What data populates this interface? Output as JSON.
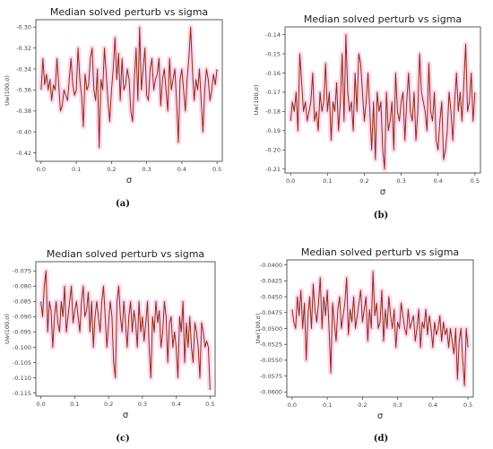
{
  "chart_data": [
    {
      "type": "line",
      "panel_label": "(a)",
      "title": "Median solved perturb vs sigma",
      "xlabel": "σ",
      "ylabel": "Uw(100,σ)",
      "xlim": [
        -0.015,
        0.515
      ],
      "ylim": [
        -0.428,
        -0.293
      ],
      "xticks": [
        0.0,
        0.1,
        0.2,
        0.3,
        0.4,
        0.5
      ],
      "xtick_labels": [
        "0.0",
        "0.1",
        "0.2",
        "0.3",
        "0.4",
        "0.5"
      ],
      "yticks": [
        -0.3,
        -0.32,
        -0.34,
        -0.36,
        -0.38,
        -0.4,
        -0.42
      ],
      "ytick_labels": [
        "-0.30",
        "-0.32",
        "-0.34",
        "-0.36",
        "-0.38",
        "-0.40",
        "-0.42"
      ],
      "grid": false,
      "line_color": "#8b2b12",
      "band_color": "#ff8fd2",
      "x": [
        0.0,
        0.005,
        0.01,
        0.015,
        0.02,
        0.025,
        0.03,
        0.035,
        0.04,
        0.045,
        0.05,
        0.055,
        0.06,
        0.065,
        0.07,
        0.075,
        0.08,
        0.085,
        0.09,
        0.095,
        0.1,
        0.105,
        0.11,
        0.115,
        0.12,
        0.125,
        0.13,
        0.135,
        0.14,
        0.145,
        0.15,
        0.155,
        0.16,
        0.165,
        0.17,
        0.175,
        0.18,
        0.185,
        0.19,
        0.195,
        0.2,
        0.205,
        0.21,
        0.215,
        0.22,
        0.225,
        0.23,
        0.235,
        0.24,
        0.245,
        0.25,
        0.255,
        0.26,
        0.265,
        0.27,
        0.275,
        0.28,
        0.285,
        0.29,
        0.295,
        0.3,
        0.305,
        0.31,
        0.315,
        0.32,
        0.325,
        0.33,
        0.335,
        0.34,
        0.345,
        0.35,
        0.355,
        0.36,
        0.365,
        0.37,
        0.375,
        0.38,
        0.385,
        0.39,
        0.395,
        0.4,
        0.405,
        0.41,
        0.415,
        0.42,
        0.425,
        0.43,
        0.435,
        0.44,
        0.445,
        0.45,
        0.455,
        0.46,
        0.465,
        0.47,
        0.475,
        0.48,
        0.485,
        0.49,
        0.495,
        0.5
      ],
      "y": [
        -0.36,
        -0.33,
        -0.355,
        -0.345,
        -0.36,
        -0.35,
        -0.37,
        -0.355,
        -0.36,
        -0.33,
        -0.355,
        -0.38,
        -0.375,
        -0.36,
        -0.365,
        -0.37,
        -0.35,
        -0.33,
        -0.355,
        -0.365,
        -0.36,
        -0.32,
        -0.35,
        -0.365,
        -0.395,
        -0.345,
        -0.36,
        -0.355,
        -0.33,
        -0.32,
        -0.36,
        -0.37,
        -0.34,
        -0.415,
        -0.35,
        -0.36,
        -0.32,
        -0.345,
        -0.37,
        -0.39,
        -0.36,
        -0.34,
        -0.31,
        -0.35,
        -0.325,
        -0.37,
        -0.33,
        -0.36,
        -0.355,
        -0.34,
        -0.35,
        -0.38,
        -0.39,
        -0.35,
        -0.32,
        -0.37,
        -0.3,
        -0.36,
        -0.34,
        -0.32,
        -0.365,
        -0.37,
        -0.34,
        -0.33,
        -0.36,
        -0.35,
        -0.345,
        -0.33,
        -0.375,
        -0.35,
        -0.34,
        -0.36,
        -0.38,
        -0.33,
        -0.36,
        -0.35,
        -0.34,
        -0.37,
        -0.41,
        -0.35,
        -0.34,
        -0.36,
        -0.38,
        -0.35,
        -0.33,
        -0.3,
        -0.34,
        -0.37,
        -0.35,
        -0.36,
        -0.34,
        -0.37,
        -0.4,
        -0.36,
        -0.34,
        -0.35,
        -0.37,
        -0.36,
        -0.345,
        -0.355,
        -0.34
      ]
    },
    {
      "type": "line",
      "panel_label": "(b)",
      "title": "Median solved perturb vs sigma",
      "xlabel": "σ",
      "ylabel": "Uw(100,σ)",
      "xlim": [
        -0.015,
        0.515
      ],
      "ylim": [
        -0.212,
        -0.136
      ],
      "xticks": [
        0.0,
        0.1,
        0.2,
        0.3,
        0.4,
        0.5
      ],
      "xtick_labels": [
        "0.0",
        "0.1",
        "0.2",
        "0.3",
        "0.4",
        "0.5"
      ],
      "yticks": [
        -0.14,
        -0.15,
        -0.16,
        -0.17,
        -0.18,
        -0.19,
        -0.2,
        -0.21
      ],
      "ytick_labels": [
        "-0.14",
        "-0.15",
        "-0.16",
        "-0.17",
        "-0.18",
        "-0.19",
        "-0.20",
        "-0.21"
      ],
      "grid": false,
      "line_color": "#8b2b12",
      "band_color": "#ff8fd2",
      "x": [
        0.0,
        0.005,
        0.01,
        0.015,
        0.02,
        0.025,
        0.03,
        0.035,
        0.04,
        0.045,
        0.05,
        0.055,
        0.06,
        0.065,
        0.07,
        0.075,
        0.08,
        0.085,
        0.09,
        0.095,
        0.1,
        0.105,
        0.11,
        0.115,
        0.12,
        0.125,
        0.13,
        0.135,
        0.14,
        0.145,
        0.15,
        0.155,
        0.16,
        0.165,
        0.17,
        0.175,
        0.18,
        0.185,
        0.19,
        0.195,
        0.2,
        0.205,
        0.21,
        0.215,
        0.22,
        0.225,
        0.23,
        0.235,
        0.24,
        0.245,
        0.25,
        0.255,
        0.26,
        0.265,
        0.27,
        0.275,
        0.28,
        0.285,
        0.29,
        0.295,
        0.3,
        0.305,
        0.31,
        0.315,
        0.32,
        0.325,
        0.33,
        0.335,
        0.34,
        0.345,
        0.35,
        0.355,
        0.36,
        0.365,
        0.37,
        0.375,
        0.38,
        0.385,
        0.39,
        0.395,
        0.4,
        0.405,
        0.41,
        0.415,
        0.42,
        0.425,
        0.43,
        0.435,
        0.44,
        0.445,
        0.45,
        0.455,
        0.46,
        0.465,
        0.47,
        0.475,
        0.48,
        0.485,
        0.49,
        0.495,
        0.5
      ],
      "y": [
        -0.185,
        -0.175,
        -0.18,
        -0.17,
        -0.19,
        -0.15,
        -0.165,
        -0.18,
        -0.175,
        -0.185,
        -0.18,
        -0.175,
        -0.16,
        -0.185,
        -0.18,
        -0.19,
        -0.17,
        -0.18,
        -0.175,
        -0.155,
        -0.18,
        -0.17,
        -0.195,
        -0.175,
        -0.18,
        -0.165,
        -0.19,
        -0.175,
        -0.15,
        -0.185,
        -0.14,
        -0.17,
        -0.18,
        -0.175,
        -0.19,
        -0.16,
        -0.18,
        -0.15,
        -0.155,
        -0.17,
        -0.185,
        -0.175,
        -0.16,
        -0.18,
        -0.2,
        -0.175,
        -0.205,
        -0.17,
        -0.18,
        -0.175,
        -0.2,
        -0.21,
        -0.17,
        -0.19,
        -0.185,
        -0.175,
        -0.2,
        -0.16,
        -0.18,
        -0.185,
        -0.175,
        -0.17,
        -0.195,
        -0.175,
        -0.16,
        -0.18,
        -0.185,
        -0.17,
        -0.195,
        -0.18,
        -0.15,
        -0.17,
        -0.175,
        -0.18,
        -0.19,
        -0.155,
        -0.18,
        -0.185,
        -0.17,
        -0.195,
        -0.2,
        -0.185,
        -0.175,
        -0.205,
        -0.2,
        -0.19,
        -0.17,
        -0.18,
        -0.195,
        -0.175,
        -0.16,
        -0.18,
        -0.17,
        -0.185,
        -0.165,
        -0.145,
        -0.18,
        -0.175,
        -0.16,
        -0.185,
        -0.17
      ]
    },
    {
      "type": "line",
      "panel_label": "(c)",
      "title": "Median solved perturb vs sigma",
      "xlabel": "σ",
      "ylabel": "Uw(100,σ)",
      "xlim": [
        -0.015,
        0.515
      ],
      "ylim": [
        -0.116,
        -0.072
      ],
      "xticks": [
        0.0,
        0.1,
        0.2,
        0.3,
        0.4,
        0.5
      ],
      "xtick_labels": [
        "0.0",
        "0.1",
        "0.2",
        "0.3",
        "0.4",
        "0.5"
      ],
      "yticks": [
        -0.075,
        -0.08,
        -0.085,
        -0.09,
        -0.095,
        -0.1,
        -0.105,
        -0.11,
        -0.115
      ],
      "ytick_labels": [
        "-0.075",
        "-0.080",
        "-0.085",
        "-0.090",
        "-0.095",
        "-0.100",
        "-0.105",
        "-0.110",
        "-0.115"
      ],
      "grid": false,
      "line_color": "#8b2b12",
      "band_color": "#ff8fd2",
      "x": [
        0.0,
        0.005,
        0.01,
        0.015,
        0.02,
        0.025,
        0.03,
        0.035,
        0.04,
        0.045,
        0.05,
        0.055,
        0.06,
        0.065,
        0.07,
        0.075,
        0.08,
        0.085,
        0.09,
        0.095,
        0.1,
        0.105,
        0.11,
        0.115,
        0.12,
        0.125,
        0.13,
        0.135,
        0.14,
        0.145,
        0.15,
        0.155,
        0.16,
        0.165,
        0.17,
        0.175,
        0.18,
        0.185,
        0.19,
        0.195,
        0.2,
        0.205,
        0.21,
        0.215,
        0.22,
        0.225,
        0.23,
        0.235,
        0.24,
        0.245,
        0.25,
        0.255,
        0.26,
        0.265,
        0.27,
        0.275,
        0.28,
        0.285,
        0.29,
        0.295,
        0.3,
        0.305,
        0.31,
        0.315,
        0.32,
        0.325,
        0.33,
        0.335,
        0.34,
        0.345,
        0.35,
        0.355,
        0.36,
        0.365,
        0.37,
        0.375,
        0.38,
        0.385,
        0.39,
        0.395,
        0.4,
        0.405,
        0.41,
        0.415,
        0.42,
        0.425,
        0.43,
        0.435,
        0.44,
        0.445,
        0.45,
        0.455,
        0.46,
        0.465,
        0.47,
        0.475,
        0.48,
        0.485,
        0.49,
        0.495,
        0.5
      ],
      "y": [
        -0.085,
        -0.09,
        -0.08,
        -0.075,
        -0.095,
        -0.085,
        -0.088,
        -0.1,
        -0.09,
        -0.085,
        -0.092,
        -0.095,
        -0.085,
        -0.09,
        -0.08,
        -0.095,
        -0.09,
        -0.085,
        -0.08,
        -0.092,
        -0.088,
        -0.085,
        -0.09,
        -0.095,
        -0.085,
        -0.08,
        -0.09,
        -0.088,
        -0.082,
        -0.095,
        -0.085,
        -0.1,
        -0.09,
        -0.085,
        -0.09,
        -0.095,
        -0.085,
        -0.08,
        -0.09,
        -0.1,
        -0.092,
        -0.085,
        -0.09,
        -0.105,
        -0.11,
        -0.085,
        -0.08,
        -0.09,
        -0.095,
        -0.085,
        -0.092,
        -0.1,
        -0.09,
        -0.085,
        -0.095,
        -0.088,
        -0.092,
        -0.1,
        -0.085,
        -0.095,
        -0.09,
        -0.098,
        -0.092,
        -0.085,
        -0.1,
        -0.11,
        -0.09,
        -0.095,
        -0.085,
        -0.092,
        -0.088,
        -0.1,
        -0.095,
        -0.085,
        -0.09,
        -0.105,
        -0.092,
        -0.09,
        -0.1,
        -0.095,
        -0.1,
        -0.11,
        -0.09,
        -0.095,
        -0.085,
        -0.105,
        -0.092,
        -0.1,
        -0.09,
        -0.1,
        -0.105,
        -0.092,
        -0.095,
        -0.1,
        -0.11,
        -0.092,
        -0.095,
        -0.1,
        -0.098,
        -0.1,
        -0.114
      ]
    },
    {
      "type": "line",
      "panel_label": "(d)",
      "title": "Median solved perturb vs sigma",
      "xlabel": "σ",
      "ylabel": "Uw(100,σ)",
      "xlim": [
        -0.015,
        0.515
      ],
      "ylim": [
        -0.0608,
        -0.0392
      ],
      "xticks": [
        0.0,
        0.1,
        0.2,
        0.3,
        0.4,
        0.5
      ],
      "xtick_labels": [
        "0.0",
        "0.1",
        "0.2",
        "0.3",
        "0.4",
        "0.5"
      ],
      "yticks": [
        -0.04,
        -0.0425,
        -0.045,
        -0.0475,
        -0.05,
        -0.0525,
        -0.055,
        -0.0575,
        -0.06
      ],
      "ytick_labels": [
        "-0.0400",
        "-0.0425",
        "-0.0450",
        "-0.0475",
        "-0.0500",
        "-0.0525",
        "-0.0550",
        "-0.0575",
        "-0.0600"
      ],
      "grid": false,
      "line_color": "#8b2b12",
      "band_color": "#ff8fd2",
      "x": [
        0.0,
        0.005,
        0.01,
        0.015,
        0.02,
        0.025,
        0.03,
        0.035,
        0.04,
        0.045,
        0.05,
        0.055,
        0.06,
        0.065,
        0.07,
        0.075,
        0.08,
        0.085,
        0.09,
        0.095,
        0.1,
        0.105,
        0.11,
        0.115,
        0.12,
        0.125,
        0.13,
        0.135,
        0.14,
        0.145,
        0.15,
        0.155,
        0.16,
        0.165,
        0.17,
        0.175,
        0.18,
        0.185,
        0.19,
        0.195,
        0.2,
        0.205,
        0.21,
        0.215,
        0.22,
        0.225,
        0.23,
        0.235,
        0.24,
        0.245,
        0.25,
        0.255,
        0.26,
        0.265,
        0.27,
        0.275,
        0.28,
        0.285,
        0.29,
        0.295,
        0.3,
        0.305,
        0.31,
        0.315,
        0.32,
        0.325,
        0.33,
        0.335,
        0.34,
        0.345,
        0.35,
        0.355,
        0.36,
        0.365,
        0.37,
        0.375,
        0.38,
        0.385,
        0.39,
        0.395,
        0.4,
        0.405,
        0.41,
        0.415,
        0.42,
        0.425,
        0.43,
        0.435,
        0.44,
        0.445,
        0.45,
        0.455,
        0.46,
        0.465,
        0.47,
        0.475,
        0.48,
        0.485,
        0.49,
        0.495,
        0.5
      ],
      "y": [
        -0.047,
        -0.049,
        -0.05,
        -0.045,
        -0.048,
        -0.044,
        -0.05,
        -0.046,
        -0.055,
        -0.048,
        -0.045,
        -0.05,
        -0.043,
        -0.047,
        -0.049,
        -0.046,
        -0.042,
        -0.05,
        -0.045,
        -0.048,
        -0.044,
        -0.05,
        -0.057,
        -0.046,
        -0.049,
        -0.052,
        -0.047,
        -0.045,
        -0.05,
        -0.048,
        -0.046,
        -0.042,
        -0.051,
        -0.047,
        -0.049,
        -0.045,
        -0.05,
        -0.048,
        -0.046,
        -0.044,
        -0.049,
        -0.047,
        -0.045,
        -0.052,
        -0.047,
        -0.05,
        -0.041,
        -0.048,
        -0.046,
        -0.05,
        -0.049,
        -0.044,
        -0.052,
        -0.047,
        -0.05,
        -0.045,
        -0.048,
        -0.05,
        -0.047,
        -0.053,
        -0.049,
        -0.05,
        -0.046,
        -0.048,
        -0.05,
        -0.051,
        -0.047,
        -0.05,
        -0.049,
        -0.048,
        -0.052,
        -0.05,
        -0.047,
        -0.053,
        -0.049,
        -0.05,
        -0.047,
        -0.051,
        -0.048,
        -0.05,
        -0.053,
        -0.049,
        -0.051,
        -0.05,
        -0.048,
        -0.052,
        -0.049,
        -0.051,
        -0.05,
        -0.053,
        -0.05,
        -0.052,
        -0.054,
        -0.05,
        -0.058,
        -0.052,
        -0.05,
        -0.055,
        -0.059,
        -0.05,
        -0.053
      ]
    }
  ]
}
